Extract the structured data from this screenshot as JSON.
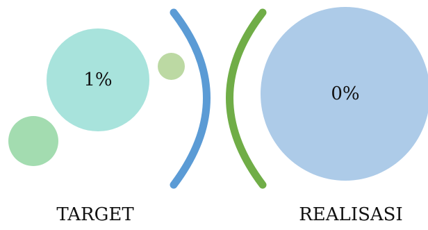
{
  "target": {
    "value": "1%",
    "label": "TARGET"
  },
  "realisasi": {
    "value": "0%",
    "label": "REALISASI"
  },
  "colors": {
    "teal_circle": "#a8e3dc",
    "light_green_circle": "#a3dcb0",
    "olive_green_circle": "#bcd9a3",
    "blue_circle": "#adcbe8",
    "blue_bracket": "#5b9bd5",
    "green_bracket": "#70ad47"
  }
}
